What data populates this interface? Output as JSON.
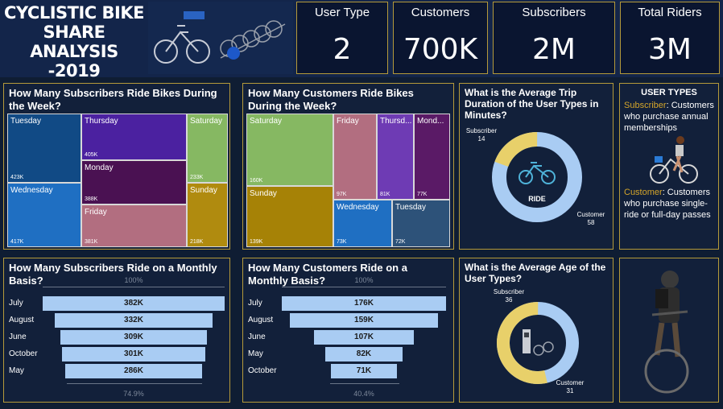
{
  "header": {
    "title_lines": [
      "CYCLISTIC BIKE",
      "SHARE ANALYSIS",
      "-2019"
    ],
    "kpis": [
      {
        "label": "User Type",
        "value": "2"
      },
      {
        "label": "Customers",
        "value": "700K"
      },
      {
        "label": "Subscribers",
        "value": "2M"
      },
      {
        "label": "Total Riders",
        "value": "3M"
      }
    ]
  },
  "subscriber_week": {
    "title": "How Many Subscribers Ride Bikes During the Week?",
    "cells": [
      {
        "name": "Tuesday",
        "value": "423K",
        "color": "#114a85"
      },
      {
        "name": "Wednesday",
        "value": "417K",
        "color": "#1f6fc2"
      },
      {
        "name": "Thursday",
        "value": "405K",
        "color": "#4b21a0"
      },
      {
        "name": "Monday",
        "value": "388K",
        "color": "#4a1152"
      },
      {
        "name": "Friday",
        "value": "381K",
        "color": "#b26e80"
      },
      {
        "name": "Saturday",
        "value": "233K",
        "color": "#86b862"
      },
      {
        "name": "Sunday",
        "value": "218K",
        "color": "#b08b0f"
      }
    ]
  },
  "customer_week": {
    "title": "How Many Customers Ride Bikes During the Week?",
    "cells": [
      {
        "name": "Saturday",
        "value": "160K",
        "color": "#86b862"
      },
      {
        "name": "Sunday",
        "value": "139K",
        "color": "#a68206"
      },
      {
        "name": "Friday",
        "value": "97K",
        "color": "#b26e80"
      },
      {
        "name": "Thursd...",
        "value": "81K",
        "color": "#6e3bb4"
      },
      {
        "name": "Mond...",
        "value": "77K",
        "color": "#5a1a66"
      },
      {
        "name": "Wednesday",
        "value": "73K",
        "color": "#1f6fc2"
      },
      {
        "name": "Tuesday",
        "value": "72K",
        "color": "#2d5279"
      }
    ]
  },
  "trip_duration": {
    "title": "What is the Average Trip Duration of the User Types in Minutes?",
    "center_label": "RIDE",
    "subscriber_label": "Subscriber",
    "subscriber_value": 14,
    "customer_label": "Customer",
    "customer_value": 58,
    "colors": {
      "subscriber": "#e8d06a",
      "customer": "#a9ccf3"
    }
  },
  "user_types": {
    "title": "USER TYPES",
    "subscriber_term": "Subscriber",
    "subscriber_desc": ": Customers who purchase annual memberships",
    "customer_term": "Customer",
    "customer_desc": ": Customers who purchase single-ride or full-day passes"
  },
  "subscriber_month": {
    "title": "How Many Subscribers Ride on a Monthly Basis?",
    "top_pct": "100%",
    "bottom_pct": "74.9%",
    "rows": [
      {
        "month": "July",
        "value": "382K",
        "ratio": 1.0
      },
      {
        "month": "August",
        "value": "332K",
        "ratio": 0.869
      },
      {
        "month": "June",
        "value": "309K",
        "ratio": 0.809
      },
      {
        "month": "October",
        "value": "301K",
        "ratio": 0.788
      },
      {
        "month": "May",
        "value": "286K",
        "ratio": 0.749
      }
    ]
  },
  "customer_month": {
    "title": "How Many Customers Ride on a Monthly Basis?",
    "top_pct": "100%",
    "bottom_pct": "40.4%",
    "rows": [
      {
        "month": "July",
        "value": "176K",
        "ratio": 1.0
      },
      {
        "month": "August",
        "value": "159K",
        "ratio": 0.903
      },
      {
        "month": "June",
        "value": "107K",
        "ratio": 0.608
      },
      {
        "month": "May",
        "value": "82K",
        "ratio": 0.466
      },
      {
        "month": "October",
        "value": "71K",
        "ratio": 0.404
      }
    ]
  },
  "avg_age": {
    "title": "What is the Average Age of the User Types?",
    "subscriber_label": "Subscriber",
    "subscriber_value": 36,
    "customer_label": "Customer",
    "customer_value": 31,
    "colors": {
      "subscriber": "#e8d06a",
      "customer": "#a9ccf3"
    }
  }
}
